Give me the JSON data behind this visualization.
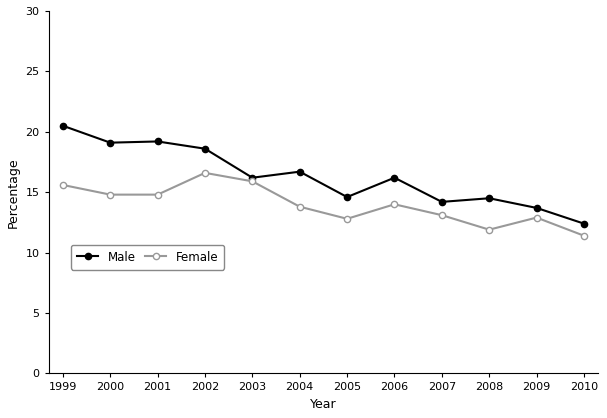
{
  "years": [
    1999,
    2000,
    2001,
    2002,
    2003,
    2004,
    2005,
    2006,
    2007,
    2008,
    2009,
    2010
  ],
  "male": [
    20.5,
    19.1,
    19.2,
    18.6,
    16.2,
    16.7,
    14.6,
    16.2,
    14.2,
    14.5,
    13.7,
    12.4
  ],
  "female": [
    15.6,
    14.8,
    14.8,
    16.6,
    15.9,
    13.8,
    12.8,
    14.0,
    13.1,
    11.9,
    12.9,
    11.4
  ],
  "male_color": "#000000",
  "female_color": "#999999",
  "male_label": "Male",
  "female_label": "Female",
  "xlabel": "Year",
  "ylabel": "Percentage",
  "ylim": [
    0,
    30
  ],
  "xlim": [
    1999,
    2010
  ],
  "yticks": [
    0,
    5,
    10,
    15,
    20,
    25,
    30
  ],
  "background_color": "#ffffff",
  "linewidth": 1.5,
  "markersize": 4.5
}
